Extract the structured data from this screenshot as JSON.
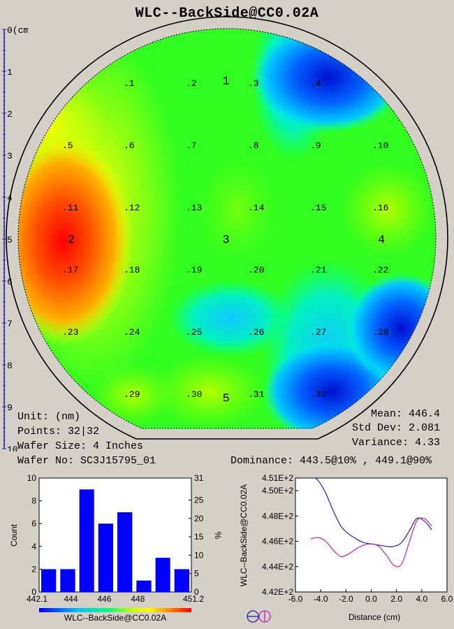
{
  "title": "WLC--BackSide@CC0.02A",
  "ruler": {
    "labels": [
      "0(cm)",
      "1",
      "2",
      "3",
      "4",
      "5",
      "6",
      "7",
      "8",
      "9",
      "10"
    ],
    "color": "#1a1acc"
  },
  "wafer_map": {
    "points": [
      {
        "label": ".1",
        "row": 1,
        "col": 1
      },
      {
        "label": ".2",
        "row": 1,
        "col": 2
      },
      {
        "label": ".3",
        "row": 1,
        "col": 3
      },
      {
        "label": ".4",
        "row": 1,
        "col": 4
      },
      {
        "label": ".5",
        "row": 2,
        "col": 0
      },
      {
        "label": ".6",
        "row": 2,
        "col": 1
      },
      {
        "label": ".7",
        "row": 2,
        "col": 2
      },
      {
        "label": ".8",
        "row": 2,
        "col": 3
      },
      {
        "label": ".9",
        "row": 2,
        "col": 4
      },
      {
        "label": ".10",
        "row": 2,
        "col": 5
      },
      {
        "label": ".11",
        "row": 3,
        "col": 0
      },
      {
        "label": ".12",
        "row": 3,
        "col": 1
      },
      {
        "label": ".13",
        "row": 3,
        "col": 2
      },
      {
        "label": ".14",
        "row": 3,
        "col": 3
      },
      {
        "label": ".15",
        "row": 3,
        "col": 4
      },
      {
        "label": ".16",
        "row": 3,
        "col": 5
      },
      {
        "label": ".17",
        "row": 4,
        "col": 0
      },
      {
        "label": ".18",
        "row": 4,
        "col": 1
      },
      {
        "label": ".19",
        "row": 4,
        "col": 2
      },
      {
        "label": ".20",
        "row": 4,
        "col": 3
      },
      {
        "label": ".21",
        "row": 4,
        "col": 4
      },
      {
        "label": ".22",
        "row": 4,
        "col": 5
      },
      {
        "label": ".23",
        "row": 5,
        "col": 0
      },
      {
        "label": ".24",
        "row": 5,
        "col": 1
      },
      {
        "label": ".25",
        "row": 5,
        "col": 2
      },
      {
        "label": ".26",
        "row": 5,
        "col": 3
      },
      {
        "label": ".27",
        "row": 5,
        "col": 4
      },
      {
        "label": ".28",
        "row": 5,
        "col": 5
      },
      {
        "label": ".29",
        "row": 6,
        "col": 1
      },
      {
        "label": ".30",
        "row": 6,
        "col": 2
      },
      {
        "label": ".31",
        "row": 6,
        "col": 3
      },
      {
        "label": ".32",
        "row": 6,
        "col": 4
      }
    ],
    "sites": [
      {
        "label": "1",
        "row": 0.95,
        "col": 2.5
      },
      {
        "label": "2",
        "row": 3.5,
        "col": 0
      },
      {
        "label": "3",
        "row": 3.5,
        "col": 2.5
      },
      {
        "label": "4",
        "row": 3.5,
        "col": 5
      },
      {
        "label": "5",
        "row": 6.05,
        "col": 2.5
      }
    ]
  },
  "info": {
    "unit": "Unit: (nm)",
    "points": "Points: 32|32",
    "wafer_size": "Wafer Size: 4 Inches",
    "wafer_no": "Wafer No: SC3J15795_01",
    "mean": "Mean: 446.4",
    "std_dev": "Std Dev: 2.081",
    "variance": "Variance: 4.33",
    "dominance": "Dominance: 443.5@10% , 449.1@90%"
  },
  "chart_data": [
    {
      "type": "bar",
      "title": "",
      "xlabel": "WLC--BackSide@CC0.02A",
      "ylabel": "Count",
      "y2label": "%",
      "x_tick_labels": [
        "442.1",
        "444",
        "446",
        "448",
        "451.2"
      ],
      "x_range": [
        442.1,
        451.2
      ],
      "ylim": [
        0,
        10
      ],
      "y2lim": [
        0,
        31
      ],
      "y_ticks": [
        "0",
        "2",
        "4",
        "6",
        "8",
        "10"
      ],
      "y2_ticks": [
        "0",
        "5",
        "10",
        "15",
        "20",
        "25",
        "31"
      ],
      "bin_edges": [
        442.1,
        443.24,
        444.38,
        445.51,
        446.65,
        447.79,
        448.93,
        450.06,
        451.2
      ],
      "values": [
        2,
        2,
        9,
        6,
        7,
        1,
        3,
        2
      ],
      "bar_color": "#0000ff"
    },
    {
      "type": "line",
      "title": "",
      "xlabel": "Distance (cm)",
      "ylabel": "WLC--BackSide@CC0.02A",
      "xlim": [
        -6,
        6
      ],
      "ylim": [
        442,
        451
      ],
      "x_ticks": [
        "-6.0",
        "-4.0",
        "-2.0",
        "0.0",
        "2.0",
        "4.0",
        "6.0"
      ],
      "y_ticks": [
        "4.42E+2",
        "4.44E+2",
        "4.46E+2",
        "4.48E+2",
        "4.50E+2",
        "4.51E+2"
      ],
      "series": [
        {
          "color": "#2020c0",
          "x": [
            -4.8,
            -4.2,
            -3.6,
            -3.0,
            -2.4,
            -1.8,
            -1.2,
            -0.6,
            0.0,
            0.6,
            1.2,
            1.8,
            2.4,
            3.0,
            3.6,
            4.2,
            4.8
          ],
          "y": [
            451.2,
            450.8,
            449.8,
            448.4,
            447.2,
            446.6,
            446.2,
            445.9,
            445.8,
            445.7,
            445.6,
            445.6,
            445.9,
            446.8,
            447.8,
            447.6,
            446.9
          ]
        },
        {
          "color": "#c020c0",
          "x": [
            -4.8,
            -4.2,
            -3.6,
            -3.0,
            -2.4,
            -1.8,
            -1.2,
            -0.6,
            0.0,
            0.6,
            1.2,
            1.8,
            2.4,
            3.0,
            3.6,
            4.2,
            4.8
          ],
          "y": [
            446.2,
            446.3,
            446.0,
            445.3,
            444.8,
            445.0,
            445.4,
            445.7,
            445.8,
            445.6,
            444.9,
            444.1,
            444.2,
            445.9,
            447.6,
            447.8,
            447.2
          ]
        }
      ]
    }
  ],
  "colors": {
    "background": "#d4d0c8",
    "colorbar": [
      "#0000ff",
      "#00c0ff",
      "#00ff80",
      "#c0ff00",
      "#ffff00",
      "#ff8000",
      "#ff0000"
    ]
  },
  "icons": [
    "horizontal-section-icon",
    "vertical-section-icon"
  ]
}
